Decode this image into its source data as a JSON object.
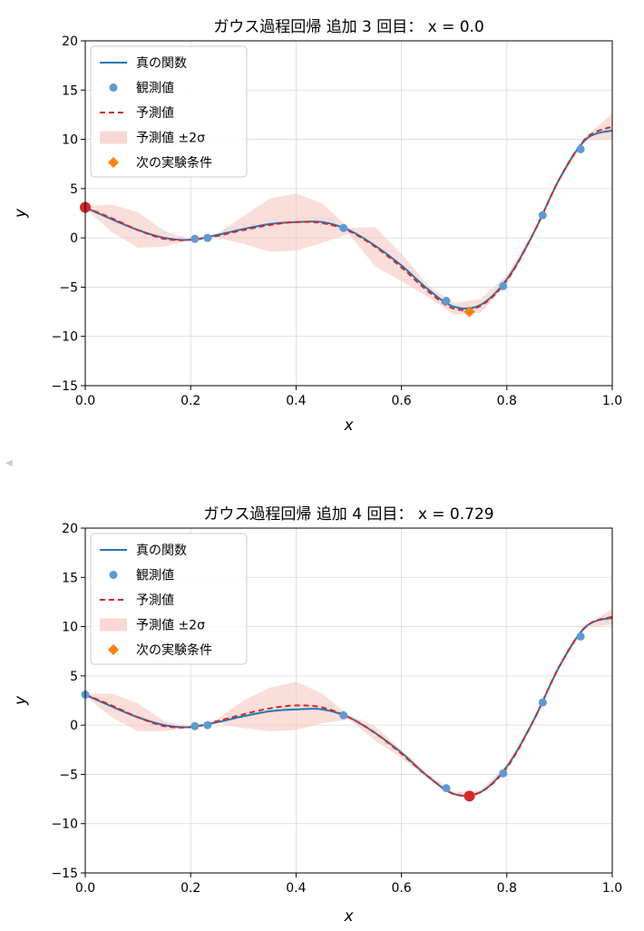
{
  "colors": {
    "true_line": "#1f77b4",
    "observed": "#5b9bd5",
    "predicted": "#d62728",
    "band": "#f7c8c2",
    "next": "#ff7f0e",
    "grid": "#d9d9d9",
    "highlight": "#d62728"
  },
  "chart_data": [
    {
      "type": "line",
      "title": "ガウス過程回帰 追加 3 回目： x = 0.0",
      "xlabel": "x",
      "ylabel": "y",
      "xlim": [
        0.0,
        1.0
      ],
      "ylim": [
        -15,
        20
      ],
      "xticks": [
        0.0,
        0.2,
        0.4,
        0.6,
        0.8,
        1.0
      ],
      "xtick_labels": [
        "0.0",
        "0.2",
        "0.4",
        "0.6",
        "0.8",
        "1.0"
      ],
      "yticks": [
        -15,
        -10,
        -5,
        0,
        5,
        10,
        15,
        20
      ],
      "ytick_labels": [
        "−15",
        "−10",
        "−5",
        "0",
        "5",
        "10",
        "15",
        "20"
      ],
      "grid": true,
      "legend": {
        "placement": "upper-left",
        "entries": [
          "真の関数",
          "観測値",
          "予測値",
          "予測値 ±2σ",
          "次の実験条件"
        ]
      },
      "series": [
        {
          "name": "真の関数",
          "x": [
            0.0,
            0.05,
            0.1,
            0.15,
            0.2,
            0.25,
            0.3,
            0.35,
            0.4,
            0.45,
            0.5,
            0.55,
            0.6,
            0.65,
            0.7,
            0.75,
            0.8,
            0.85,
            0.9,
            0.95,
            1.0
          ],
          "y": [
            3.1,
            1.9,
            0.8,
            0.0,
            -0.2,
            0.3,
            0.9,
            1.4,
            1.6,
            1.6,
            0.8,
            -0.8,
            -2.8,
            -5.2,
            -7.0,
            -6.8,
            -4.2,
            0.4,
            6.0,
            10.0,
            10.9
          ]
        },
        {
          "name": "予測値",
          "x": [
            0.0,
            0.05,
            0.1,
            0.15,
            0.2,
            0.25,
            0.3,
            0.35,
            0.4,
            0.45,
            0.5,
            0.55,
            0.6,
            0.65,
            0.7,
            0.75,
            0.8,
            0.85,
            0.9,
            0.95,
            1.0
          ],
          "y": [
            3.1,
            2.0,
            0.8,
            -0.1,
            -0.2,
            0.2,
            0.8,
            1.3,
            1.6,
            1.5,
            0.7,
            -0.9,
            -3.0,
            -5.4,
            -7.2,
            -6.9,
            -4.3,
            0.4,
            6.0,
            10.1,
            11.3
          ],
          "lower": [
            3.0,
            0.6,
            -1.0,
            -0.9,
            -0.2,
            0.0,
            -0.6,
            -1.4,
            -1.3,
            -0.5,
            0.4,
            -2.9,
            -4.4,
            -6.0,
            -7.8,
            -7.6,
            -4.8,
            0.2,
            5.9,
            9.9,
            10.0
          ],
          "upper": [
            3.2,
            3.4,
            2.6,
            0.7,
            -0.2,
            0.4,
            2.2,
            4.0,
            4.5,
            3.5,
            1.0,
            1.1,
            -1.6,
            -4.8,
            -6.6,
            -6.2,
            -3.8,
            0.6,
            6.1,
            10.3,
            12.6
          ]
        }
      ],
      "observed": {
        "x": [
          0.208,
          0.232,
          0.49,
          0.685,
          0.793,
          0.868,
          0.94
        ],
        "y": [
          -0.1,
          0.0,
          1.0,
          -6.4,
          -4.9,
          2.3,
          9.0
        ]
      },
      "highlight_point": {
        "x": 0.0,
        "y": 3.1
      },
      "next_point": {
        "x": 0.729,
        "y": -7.5
      }
    },
    {
      "type": "line",
      "title": "ガウス過程回帰 追加 4 回目： x = 0.729",
      "xlabel": "x",
      "ylabel": "y",
      "xlim": [
        0.0,
        1.0
      ],
      "ylim": [
        -15,
        20
      ],
      "xticks": [
        0.0,
        0.2,
        0.4,
        0.6,
        0.8,
        1.0
      ],
      "xtick_labels": [
        "0.0",
        "0.2",
        "0.4",
        "0.6",
        "0.8",
        "1.0"
      ],
      "yticks": [
        -15,
        -10,
        -5,
        0,
        5,
        10,
        15,
        20
      ],
      "ytick_labels": [
        "−15",
        "−10",
        "−5",
        "0",
        "5",
        "10",
        "15",
        "20"
      ],
      "grid": true,
      "legend": {
        "placement": "upper-left",
        "entries": [
          "真の関数",
          "観測値",
          "予測値",
          "予測値 ±2σ",
          "次の実験条件"
        ]
      },
      "series": [
        {
          "name": "真の関数",
          "x": [
            0.0,
            0.05,
            0.1,
            0.15,
            0.2,
            0.25,
            0.3,
            0.35,
            0.4,
            0.45,
            0.5,
            0.55,
            0.6,
            0.65,
            0.7,
            0.75,
            0.8,
            0.85,
            0.9,
            0.95,
            1.0
          ],
          "y": [
            3.1,
            1.9,
            0.8,
            0.0,
            -0.2,
            0.3,
            0.9,
            1.4,
            1.6,
            1.6,
            0.8,
            -0.8,
            -2.8,
            -5.2,
            -7.0,
            -6.8,
            -4.2,
            0.4,
            6.0,
            10.0,
            10.9
          ]
        },
        {
          "name": "予測値",
          "x": [
            0.0,
            0.05,
            0.1,
            0.15,
            0.2,
            0.25,
            0.3,
            0.35,
            0.4,
            0.45,
            0.5,
            0.55,
            0.6,
            0.65,
            0.7,
            0.75,
            0.8,
            0.85,
            0.9,
            0.95,
            1.0
          ],
          "y": [
            3.1,
            2.0,
            0.8,
            -0.1,
            -0.2,
            0.4,
            1.1,
            1.7,
            2.0,
            1.8,
            0.8,
            -0.8,
            -2.9,
            -5.2,
            -7.0,
            -6.8,
            -4.3,
            0.4,
            6.0,
            10.0,
            11.0
          ],
          "lower": [
            3.0,
            0.8,
            -0.6,
            -0.6,
            -0.2,
            0.2,
            -0.3,
            -0.6,
            -0.5,
            0.2,
            0.6,
            -1.6,
            -3.3,
            -5.4,
            -7.2,
            -7.0,
            -4.6,
            0.2,
            5.9,
            9.9,
            10.2
          ],
          "upper": [
            3.2,
            3.2,
            2.2,
            0.4,
            -0.2,
            0.6,
            2.5,
            3.8,
            4.4,
            3.2,
            1.0,
            -0.1,
            -2.5,
            -5.0,
            -6.8,
            -6.6,
            -4.0,
            0.6,
            6.1,
            10.1,
            11.8
          ]
        }
      ],
      "observed": {
        "x": [
          0.0,
          0.208,
          0.232,
          0.49,
          0.685,
          0.793,
          0.868,
          0.94
        ],
        "y": [
          3.1,
          -0.1,
          0.0,
          1.0,
          -6.4,
          -4.9,
          2.3,
          9.0
        ]
      },
      "highlight_point": {
        "x": 0.729,
        "y": -7.2
      },
      "next_point": null
    }
  ]
}
